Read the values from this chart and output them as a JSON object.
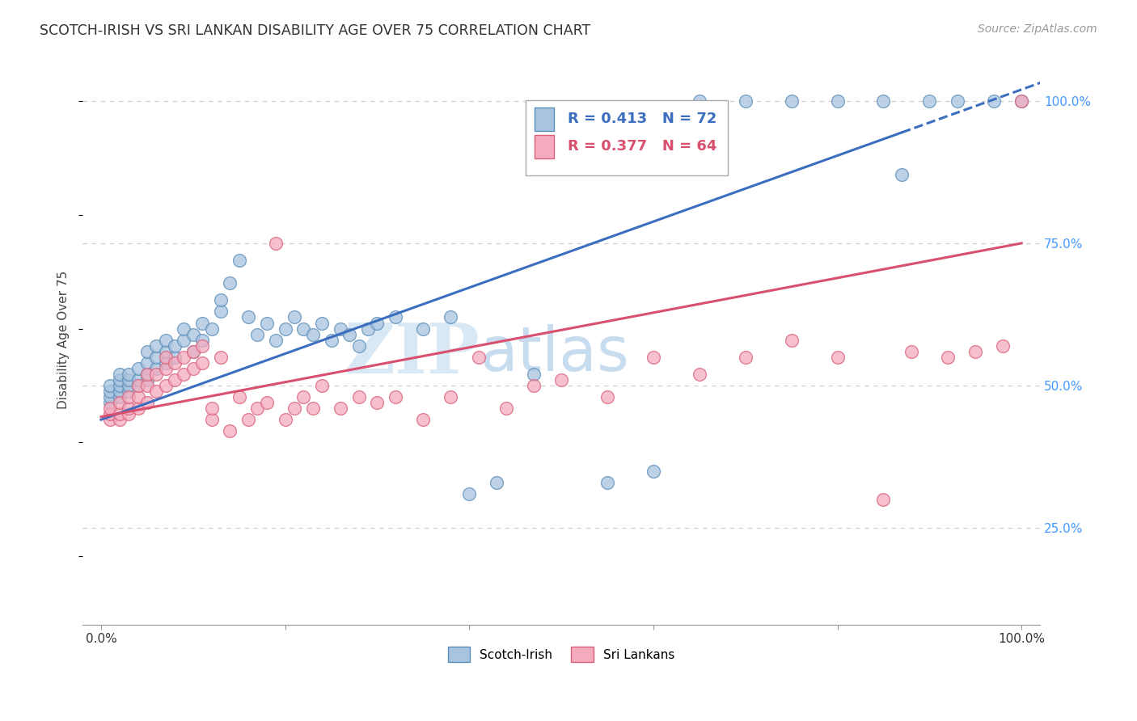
{
  "title": "SCOTCH-IRISH VS SRI LANKAN DISABILITY AGE OVER 75 CORRELATION CHART",
  "source": "Source: ZipAtlas.com",
  "ylabel": "Disability Age Over 75",
  "blue_R": 0.413,
  "blue_N": 72,
  "pink_R": 0.377,
  "pink_N": 64,
  "blue_color": "#A8C4E0",
  "blue_edge": "#5B8DB8",
  "pink_color": "#F4ABBE",
  "pink_edge": "#D9607A",
  "blue_line_color": "#3B6EBF",
  "pink_line_color": "#D94F6E",
  "grid_color": "#CCCCCC",
  "background_color": "#FFFFFF",
  "right_axis_color": "#4499FF",
  "blue_line_intercept": 44.0,
  "blue_line_slope": 0.58,
  "pink_line_intercept": 44.5,
  "pink_line_slope": 0.305,
  "blue_x": [
    1,
    1,
    1,
    1,
    2,
    2,
    2,
    2,
    2,
    3,
    3,
    3,
    3,
    4,
    4,
    4,
    5,
    5,
    5,
    5,
    6,
    6,
    6,
    7,
    7,
    7,
    8,
    8,
    9,
    9,
    10,
    10,
    11,
    11,
    12,
    13,
    13,
    14,
    15,
    16,
    17,
    18,
    19,
    20,
    21,
    22,
    23,
    24,
    25,
    26,
    27,
    28,
    29,
    30,
    32,
    35,
    38,
    40,
    43,
    47,
    55,
    60,
    65,
    70,
    75,
    80,
    85,
    87,
    90,
    93,
    97,
    100
  ],
  "blue_y": [
    47,
    48,
    49,
    50,
    48,
    49,
    50,
    51,
    52,
    49,
    50,
    51,
    52,
    50,
    51,
    53,
    51,
    52,
    54,
    56,
    53,
    55,
    57,
    54,
    56,
    58,
    55,
    57,
    58,
    60,
    56,
    59,
    58,
    61,
    60,
    63,
    65,
    68,
    72,
    62,
    59,
    61,
    58,
    60,
    62,
    60,
    59,
    61,
    58,
    60,
    59,
    57,
    60,
    61,
    62,
    60,
    62,
    31,
    33,
    52,
    33,
    35,
    100,
    100,
    100,
    100,
    100,
    87,
    100,
    100,
    100,
    100
  ],
  "pink_x": [
    1,
    1,
    1,
    2,
    2,
    2,
    3,
    3,
    3,
    4,
    4,
    4,
    5,
    5,
    5,
    6,
    6,
    7,
    7,
    7,
    8,
    8,
    9,
    9,
    10,
    10,
    11,
    11,
    12,
    12,
    13,
    14,
    15,
    16,
    17,
    18,
    19,
    20,
    21,
    22,
    23,
    24,
    26,
    28,
    30,
    32,
    35,
    38,
    41,
    44,
    47,
    50,
    55,
    60,
    65,
    70,
    75,
    80,
    85,
    88,
    92,
    95,
    98,
    100
  ],
  "pink_y": [
    44,
    45,
    46,
    44,
    45,
    47,
    45,
    46,
    48,
    46,
    48,
    50,
    47,
    50,
    52,
    49,
    52,
    50,
    53,
    55,
    51,
    54,
    52,
    55,
    53,
    56,
    54,
    57,
    44,
    46,
    55,
    42,
    48,
    44,
    46,
    47,
    75,
    44,
    46,
    48,
    46,
    50,
    46,
    48,
    47,
    48,
    44,
    48,
    55,
    46,
    50,
    51,
    48,
    55,
    52,
    55,
    58,
    55,
    30,
    56,
    55,
    56,
    57,
    100
  ]
}
